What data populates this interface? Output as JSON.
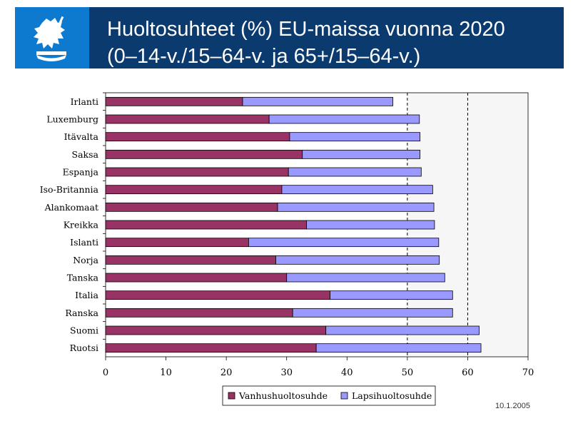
{
  "header": {
    "title_line1": "Huoltosuhteet (%) EU-maissa vuonna 2020",
    "title_line2": "(0–14-v./15–64-v. ja 65+/15–64-v.)",
    "logo_icon": "finnish-lion-emblem-icon"
  },
  "footer": {
    "date": "10.1.2005"
  },
  "colors": {
    "header_bg": "#0b3a6e",
    "logo_bg": "#0d7ad0",
    "series1": "#993366",
    "series2": "#9999ff"
  },
  "chart_data": {
    "type": "bar",
    "orientation": "horizontal",
    "stacked": true,
    "categories": [
      "Irlanti",
      "Luxemburg",
      "Itävalta",
      "Saksa",
      "Espanja",
      "Iso-Britannia",
      "Alankomaat",
      "Kreikka",
      "Islanti",
      "Norja",
      "Tanska",
      "Italia",
      "Ranska",
      "Suomi",
      "Ruotsi"
    ],
    "series": [
      {
        "name": "Vanhushuoltosuhde",
        "color": "#993366",
        "values": [
          22.7,
          27.1,
          30.5,
          32.6,
          30.3,
          29.2,
          28.5,
          33.3,
          23.7,
          28.2,
          30.0,
          37.2,
          31.0,
          36.5,
          34.9
        ]
      },
      {
        "name": "Lapsihuoltosuhde",
        "color": "#9999ff",
        "values": [
          24.9,
          24.9,
          21.6,
          19.5,
          22.0,
          25.0,
          25.9,
          21.2,
          31.5,
          27.1,
          26.2,
          20.3,
          26.5,
          25.4,
          27.3
        ]
      }
    ],
    "xlim": [
      0,
      70
    ],
    "xticks": [
      "0",
      "10",
      "20",
      "30",
      "40",
      "50",
      "60",
      "70"
    ],
    "reference_lines": [
      50,
      60
    ],
    "legend_position": "bottom"
  }
}
